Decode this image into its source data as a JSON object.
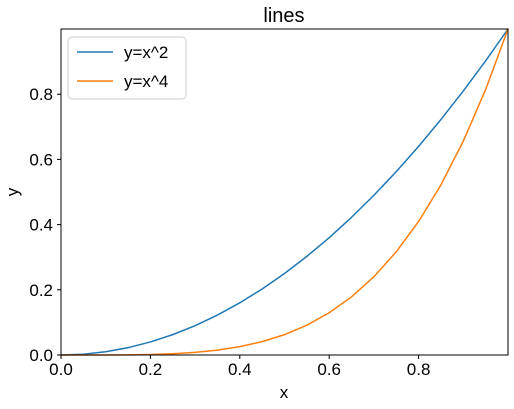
{
  "chart_data": {
    "type": "line",
    "title": "lines",
    "xlabel": "x",
    "ylabel": "y",
    "xlim": [
      0,
      1
    ],
    "ylim": [
      0,
      1
    ],
    "xticks": [
      0.0,
      0.2,
      0.4,
      0.6,
      0.8
    ],
    "xtick_labels": [
      "0.0",
      "0.2",
      "0.4",
      "0.6",
      "0.8"
    ],
    "yticks": [
      0.0,
      0.2,
      0.4,
      0.6,
      0.8
    ],
    "ytick_labels": [
      "0.0",
      "0.2",
      "0.4",
      "0.6",
      "0.8"
    ],
    "grid": false,
    "legend_position": "top-left",
    "x": [
      0.0,
      0.05,
      0.1,
      0.15,
      0.2,
      0.25,
      0.3,
      0.35,
      0.4,
      0.45,
      0.5,
      0.55,
      0.6,
      0.65,
      0.7,
      0.75,
      0.8,
      0.85,
      0.9,
      0.95,
      1.0
    ],
    "series": [
      {
        "name": "y=x^2",
        "color": "#1f77b4",
        "values": [
          0.0,
          0.0025,
          0.01,
          0.0225,
          0.04,
          0.0625,
          0.09,
          0.1225,
          0.16,
          0.2025,
          0.25,
          0.3025,
          0.36,
          0.4225,
          0.49,
          0.5625,
          0.64,
          0.7225,
          0.81,
          0.9025,
          1.0
        ]
      },
      {
        "name": "y=x^4",
        "color": "#ff7f0e",
        "values": [
          0.0,
          6.25e-06,
          0.0001,
          0.00050625,
          0.0016,
          0.00390625,
          0.0081,
          0.01500625,
          0.0256,
          0.04100625,
          0.0625,
          0.09150625,
          0.1296,
          0.17850625,
          0.2401,
          0.31640625,
          0.4096,
          0.52200625,
          0.6561,
          0.81450625,
          1.0
        ]
      }
    ]
  }
}
